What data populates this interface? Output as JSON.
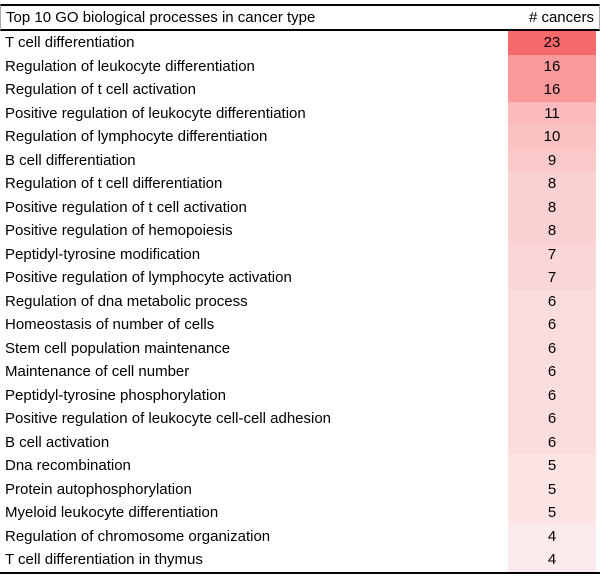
{
  "table": {
    "header": {
      "process_label": "Top 10 GO biological processes in cancer type",
      "count_label": "# cancers"
    },
    "rows": [
      {
        "process": "T cell differentiation",
        "count": 23
      },
      {
        "process": "Regulation of leukocyte differentiation",
        "count": 16
      },
      {
        "process": "Regulation of t cell activation",
        "count": 16
      },
      {
        "process": "Positive regulation of leukocyte differentiation",
        "count": 11
      },
      {
        "process": "Regulation of lymphocyte differentiation",
        "count": 10
      },
      {
        "process": "B cell differentiation",
        "count": 9
      },
      {
        "process": "Regulation of t cell differentiation",
        "count": 8
      },
      {
        "process": "Positive regulation of t cell activation",
        "count": 8
      },
      {
        "process": "Positive regulation of hemopoiesis",
        "count": 8
      },
      {
        "process": "Peptidyl-tyrosine modification",
        "count": 7
      },
      {
        "process": "Positive regulation of lymphocyte activation",
        "count": 7
      },
      {
        "process": "Regulation of dna metabolic process",
        "count": 6
      },
      {
        "process": "Homeostasis of number of cells",
        "count": 6
      },
      {
        "process": "Stem cell population maintenance",
        "count": 6
      },
      {
        "process": "Maintenance of cell number",
        "count": 6
      },
      {
        "process": "Peptidyl-tyrosine phosphorylation",
        "count": 6
      },
      {
        "process": "Positive regulation of leukocyte cell-cell adhesion",
        "count": 6
      },
      {
        "process": "B cell activation",
        "count": 6
      },
      {
        "process": "Dna recombination",
        "count": 5
      },
      {
        "process": "Protein autophosphorylation",
        "count": 5
      },
      {
        "process": "Myeloid leukocyte differentiation",
        "count": 5
      },
      {
        "process": "Regulation of chromosome organization",
        "count": 4
      },
      {
        "process": "T cell differentiation in thymus",
        "count": 4
      }
    ],
    "count_colors": {
      "23": "#F8696B",
      "16": "#FA999B",
      "11": "#FBBBBD",
      "10": "#FBC2C3",
      "9": "#FBC9CA",
      "8": "#FBD0D1",
      "7": "#FBD6D8",
      "6": "#FCDDDE",
      "5": "#FCE4E5",
      "4": "#FCEBEC"
    },
    "heat_scale": {
      "max_color": "#F8696B",
      "min_color": "#FCEBEC",
      "max_value": 23,
      "min_value": 4
    }
  },
  "chart_data": {
    "type": "table",
    "title": "Top 10 GO biological processes in cancer type",
    "columns": [
      "Top 10 GO biological processes in cancer type",
      "# cancers"
    ],
    "categories": [
      "T cell differentiation",
      "Regulation of leukocyte differentiation",
      "Regulation of t cell activation",
      "Positive regulation of leukocyte differentiation",
      "Regulation of lymphocyte differentiation",
      "B cell differentiation",
      "Regulation of t cell differentiation",
      "Positive regulation of t cell activation",
      "Positive regulation of hemopoiesis",
      "Peptidyl-tyrosine modification",
      "Positive regulation of lymphocyte activation",
      "Regulation of dna metabolic process",
      "Homeostasis of number of cells",
      "Stem cell population maintenance",
      "Maintenance of cell number",
      "Peptidyl-tyrosine phosphorylation",
      "Positive regulation of leukocyte cell-cell adhesion",
      "B cell activation",
      "Dna recombination",
      "Protein autophosphorylation",
      "Myeloid leukocyte differentiation",
      "Regulation of chromosome organization",
      "T cell differentiation in thymus"
    ],
    "values": [
      23,
      16,
      16,
      11,
      10,
      9,
      8,
      8,
      8,
      7,
      7,
      6,
      6,
      6,
      6,
      6,
      6,
      6,
      5,
      5,
      5,
      4,
      4
    ],
    "value_column_style": "heatmap red-to-white, higher = more red",
    "layout": "two-column table, top/header/bottom black rules"
  }
}
